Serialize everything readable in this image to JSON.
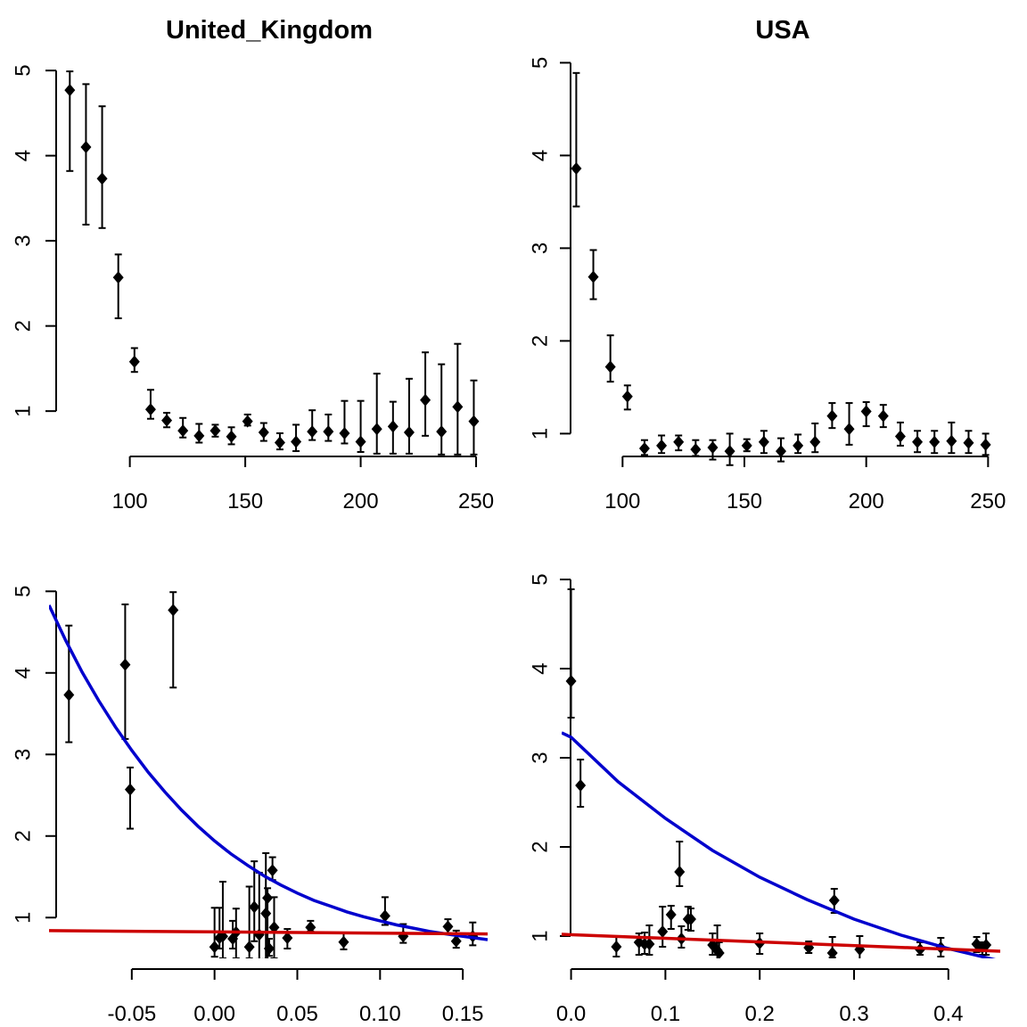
{
  "chart_data": [
    {
      "type": "scatter",
      "title": "United_Kingdom",
      "xlabel": "",
      "ylabel": "",
      "xlim": [
        65,
        255
      ],
      "ylim": [
        0.3,
        5.2
      ],
      "xticks": [
        100,
        150,
        200,
        250
      ],
      "xtick_labels": [
        "100",
        "150",
        "200",
        "250"
      ],
      "yticks": [
        1,
        2,
        3,
        4,
        5
      ],
      "ytick_labels": [
        "1",
        "2",
        "3",
        "4",
        "5"
      ],
      "series": [
        {
          "x": [
            74,
            81,
            88,
            95,
            102,
            109,
            116,
            123,
            130,
            137,
            144,
            151,
            158,
            165,
            172,
            179,
            186,
            193,
            200,
            207,
            214,
            221,
            228,
            235,
            242,
            249
          ],
          "y": [
            4.77,
            4.1,
            3.73,
            2.57,
            1.58,
            1.02,
            0.89,
            0.77,
            0.71,
            0.77,
            0.7,
            0.88,
            0.75,
            0.63,
            0.64,
            0.76,
            0.76,
            0.74,
            0.64,
            0.79,
            0.82,
            0.75,
            1.13,
            0.76,
            1.05,
            0.88
          ],
          "err_low": [
            3.82,
            3.19,
            3.15,
            2.09,
            1.46,
            0.91,
            0.81,
            0.69,
            0.63,
            0.7,
            0.61,
            0.83,
            0.65,
            0.55,
            0.53,
            0.66,
            0.65,
            0.62,
            0.52,
            0.5,
            0.5,
            0.5,
            0.71,
            0.49,
            0.49,
            0.49
          ],
          "err_high": [
            4.99,
            4.84,
            4.58,
            2.84,
            1.74,
            1.25,
            0.98,
            0.92,
            0.85,
            0.84,
            0.81,
            0.96,
            0.86,
            0.74,
            0.84,
            1.01,
            0.96,
            1.12,
            1.12,
            1.44,
            1.11,
            1.38,
            1.69,
            1.55,
            1.79,
            1.36
          ],
          "color": "#000000"
        }
      ]
    },
    {
      "type": "scatter",
      "title": "USA",
      "xlabel": "",
      "ylabel": "",
      "xlim": [
        75,
        255
      ],
      "ylim": [
        0.6,
        5.1
      ],
      "xticks": [
        100,
        150,
        200,
        250
      ],
      "xtick_labels": [
        "100",
        "150",
        "200",
        "250"
      ],
      "yticks": [
        1,
        2,
        3,
        4,
        5
      ],
      "ytick_labels": [
        "1",
        "2",
        "3",
        "4",
        "5"
      ],
      "series": [
        {
          "x": [
            81,
            88,
            95,
            102,
            109,
            116,
            123,
            130,
            137,
            144,
            151,
            158,
            165,
            172,
            179,
            186,
            193,
            200,
            207,
            214,
            221,
            228,
            235,
            242,
            249
          ],
          "y": [
            3.86,
            2.69,
            1.72,
            1.4,
            0.84,
            0.87,
            0.91,
            0.83,
            0.85,
            0.81,
            0.87,
            0.91,
            0.81,
            0.87,
            0.91,
            1.19,
            1.05,
            1.24,
            1.19,
            0.97,
            0.91,
            0.91,
            0.92,
            0.9,
            0.88
          ],
          "err_low": [
            3.45,
            2.45,
            1.56,
            1.26,
            0.77,
            0.79,
            0.82,
            0.76,
            0.72,
            0.66,
            0.81,
            0.79,
            0.7,
            0.79,
            0.8,
            1.06,
            0.88,
            1.08,
            1.07,
            0.87,
            0.8,
            0.79,
            0.79,
            0.79,
            0.77
          ],
          "err_high": [
            4.89,
            2.98,
            2.06,
            1.52,
            0.93,
            0.98,
            0.98,
            0.93,
            0.93,
            1.0,
            0.94,
            1.03,
            0.95,
            0.99,
            1.11,
            1.33,
            1.33,
            1.34,
            1.31,
            1.12,
            1.03,
            1.03,
            1.12,
            1.03,
            1.0
          ],
          "color": "#000000"
        }
      ]
    },
    {
      "type": "scatter",
      "title": "",
      "xlabel": "",
      "ylabel": "",
      "xlim": [
        -0.1,
        0.165
      ],
      "ylim": [
        0.5,
        5.2
      ],
      "xticks": [
        -0.05,
        0.0,
        0.05,
        0.1,
        0.15
      ],
      "xtick_labels": [
        "-0.05",
        "0.00",
        "0.05",
        "0.10",
        "0.15"
      ],
      "yticks": [
        1,
        2,
        3,
        4,
        5
      ],
      "ytick_labels": [
        "1",
        "2",
        "3",
        "4",
        "5"
      ],
      "series": [
        {
          "x": [
            -0.088,
            -0.054,
            -0.051,
            -0.025,
            0.0,
            0.003,
            0.005,
            0.011,
            0.013,
            0.021,
            0.024,
            0.027,
            0.031,
            0.032,
            0.033,
            0.035,
            0.036,
            0.044,
            0.058,
            0.078,
            0.103,
            0.114,
            0.141,
            0.146,
            0.156
          ],
          "y": [
            3.73,
            4.1,
            2.57,
            4.77,
            0.64,
            0.75,
            0.77,
            0.74,
            0.82,
            0.64,
            1.13,
            0.79,
            1.05,
            1.24,
            0.62,
            1.58,
            0.88,
            0.75,
            0.88,
            0.7,
            1.02,
            0.77,
            0.89,
            0.71,
            0.77
          ],
          "err_low": [
            3.15,
            3.19,
            2.09,
            3.82,
            0.52,
            0.62,
            0.5,
            0.62,
            0.5,
            0.5,
            0.71,
            0.49,
            0.49,
            0.49,
            0.53,
            1.46,
            0.5,
            0.62,
            0.83,
            0.61,
            0.91,
            0.69,
            0.81,
            0.63,
            0.66
          ],
          "err_high": [
            4.58,
            4.84,
            2.84,
            4.99,
            1.12,
            1.12,
            1.44,
            0.96,
            1.11,
            1.38,
            1.69,
            1.55,
            1.79,
            1.36,
            0.74,
            1.74,
            1.25,
            0.86,
            0.96,
            0.81,
            1.25,
            0.92,
            0.98,
            0.84,
            0.94
          ],
          "color": "#000000"
        },
        {
          "type": "line",
          "x": [
            -0.1,
            -0.09,
            -0.08,
            -0.07,
            -0.06,
            -0.05,
            -0.04,
            -0.03,
            -0.02,
            -0.01,
            0.0,
            0.01,
            0.02,
            0.03,
            0.04,
            0.05,
            0.06,
            0.07,
            0.08,
            0.09,
            0.1,
            0.11,
            0.12,
            0.13,
            0.14,
            0.15,
            0.165
          ],
          "y": [
            4.83,
            4.4,
            4.01,
            3.66,
            3.34,
            3.05,
            2.78,
            2.54,
            2.32,
            2.12,
            1.94,
            1.78,
            1.64,
            1.51,
            1.4,
            1.3,
            1.21,
            1.14,
            1.07,
            1.01,
            0.96,
            0.91,
            0.87,
            0.83,
            0.8,
            0.77,
            0.73
          ],
          "color": "#0000CD"
        },
        {
          "type": "line",
          "x": [
            -0.1,
            0.165
          ],
          "y": [
            0.84,
            0.8
          ],
          "color": "#CC0000"
        }
      ]
    },
    {
      "type": "scatter",
      "title": "",
      "xlabel": "",
      "ylabel": "",
      "xlim": [
        -0.01,
        0.455
      ],
      "ylim": [
        0.75,
        5.05
      ],
      "xticks": [
        0.0,
        0.1,
        0.2,
        0.3,
        0.4
      ],
      "xtick_labels": [
        "0.0",
        "0.1",
        "0.2",
        "0.3",
        "0.4"
      ],
      "yticks": [
        1,
        2,
        3,
        4,
        5
      ],
      "ytick_labels": [
        "1",
        "2",
        "3",
        "4",
        "5"
      ],
      "series": [
        {
          "x": [
            0.0,
            0.01,
            0.048,
            0.072,
            0.078,
            0.083,
            0.097,
            0.106,
            0.115,
            0.117,
            0.124,
            0.127,
            0.15,
            0.155,
            0.157,
            0.2,
            0.252,
            0.277,
            0.279,
            0.306,
            0.37,
            0.392,
            0.43,
            0.436,
            0.44
          ],
          "y": [
            3.86,
            2.69,
            0.88,
            0.93,
            0.91,
            0.91,
            1.05,
            1.24,
            1.72,
            0.97,
            1.19,
            1.19,
            0.9,
            0.84,
            0.81,
            0.92,
            0.87,
            0.81,
            1.4,
            0.85,
            0.85,
            0.87,
            0.91,
            0.87,
            0.9
          ],
          "err_low": [
            3.45,
            2.45,
            0.77,
            0.79,
            0.8,
            0.79,
            0.88,
            1.08,
            1.56,
            0.87,
            1.07,
            1.06,
            0.79,
            0.72,
            0.66,
            0.8,
            0.81,
            0.76,
            1.26,
            0.7,
            0.79,
            0.77,
            0.82,
            0.79,
            0.79
          ],
          "err_high": [
            4.89,
            2.98,
            1.0,
            1.03,
            1.04,
            1.12,
            1.33,
            1.34,
            2.06,
            1.11,
            1.33,
            1.31,
            1.03,
            1.12,
            0.93,
            1.03,
            0.94,
            0.99,
            1.53,
            1.0,
            0.93,
            0.98,
            0.99,
            0.93,
            1.03
          ],
          "color": "#000000"
        },
        {
          "type": "line",
          "x": [
            -0.01,
            0.0,
            0.05,
            0.1,
            0.15,
            0.2,
            0.25,
            0.3,
            0.35,
            0.4,
            0.455
          ],
          "y": [
            3.28,
            3.23,
            2.73,
            2.32,
            1.96,
            1.66,
            1.41,
            1.19,
            1.01,
            0.86,
            0.72
          ],
          "color": "#0000CD"
        },
        {
          "type": "line",
          "x": [
            -0.01,
            0.455
          ],
          "y": [
            1.02,
            0.83
          ],
          "color": "#CC0000"
        }
      ]
    }
  ]
}
